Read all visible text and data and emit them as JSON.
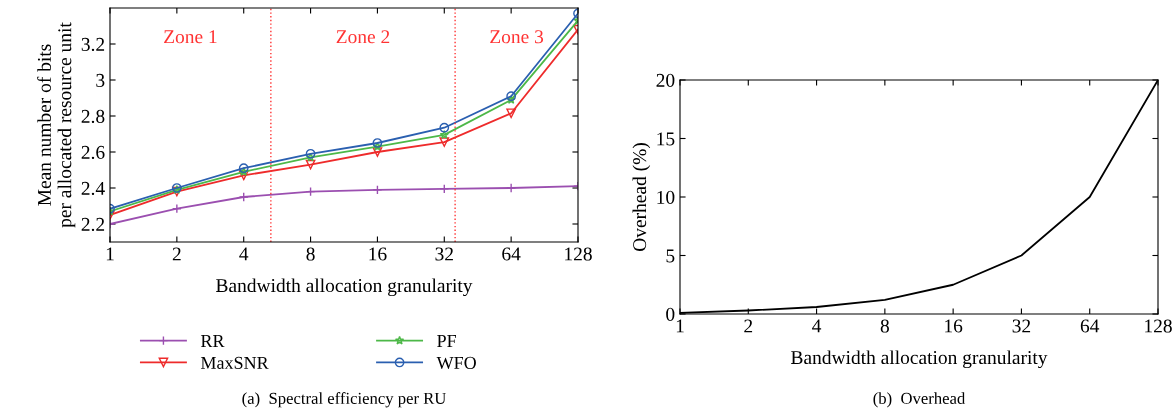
{
  "chart_data": [
    {
      "type": "line",
      "xlabel": "Bandwidth allocation granularity",
      "ylabel": "Mean number of bits\nper allocated resource unit",
      "x": [
        1,
        2,
        4,
        8,
        16,
        32,
        64,
        128
      ],
      "log": "x",
      "xlim": [
        1,
        128
      ],
      "xticks": [
        1,
        2,
        4,
        8,
        16,
        32,
        64,
        128
      ],
      "ylim": [
        2.1,
        3.4
      ],
      "yticks": [
        2.2,
        2.4,
        2.6,
        2.8,
        3,
        3.2
      ],
      "legend": "bottom",
      "grid": false,
      "series": [
        {
          "name": "RR",
          "color": "#9b4fb0",
          "marker": "cross",
          "values": [
            2.2,
            2.285,
            2.35,
            2.38,
            2.39,
            2.395,
            2.4,
            2.41
          ]
        },
        {
          "name": "MaxSNR",
          "color": "#ee2b2b",
          "marker": "triangle",
          "values": [
            2.25,
            2.38,
            2.47,
            2.53,
            2.6,
            2.655,
            2.815,
            3.28
          ]
        },
        {
          "name": "PF",
          "color": "#4db848",
          "marker": "star",
          "values": [
            2.27,
            2.39,
            2.49,
            2.57,
            2.63,
            2.695,
            2.89,
            3.33
          ]
        },
        {
          "name": "WFO",
          "color": "#2a5fb0",
          "marker": "circle",
          "values": [
            2.285,
            2.4,
            2.51,
            2.59,
            2.65,
            2.735,
            2.91,
            3.37
          ]
        }
      ],
      "ref_lines": [
        {
          "axis": "x",
          "value": 5.3,
          "color": "#ff3333",
          "line_style": "dotted"
        },
        {
          "axis": "x",
          "value": 35.8,
          "color": "#ff3333",
          "line_style": "dotted"
        }
      ],
      "annotations": [
        "Zone 1",
        "Zone 2",
        "Zone 3",
        "(a)  Spectral efficiency per RU"
      ]
    },
    {
      "type": "line",
      "xlabel": "Bandwidth allocation granularity",
      "ylabel": "Overhead (%)",
      "x": [
        1,
        2,
        4,
        8,
        16,
        32,
        64,
        128
      ],
      "log": "x",
      "xlim": [
        1,
        128
      ],
      "xticks": [
        1,
        2,
        4,
        8,
        16,
        32,
        64,
        128
      ],
      "ylim": [
        0,
        20
      ],
      "yticks": [
        0,
        5,
        10,
        15,
        20
      ],
      "grid": false,
      "series": [
        {
          "color": "#000000",
          "values": [
            0.1,
            0.3,
            0.6,
            1.2,
            2.5,
            5,
            10,
            20
          ]
        }
      ],
      "annotations": [
        "(b)  Overhead"
      ]
    }
  ]
}
